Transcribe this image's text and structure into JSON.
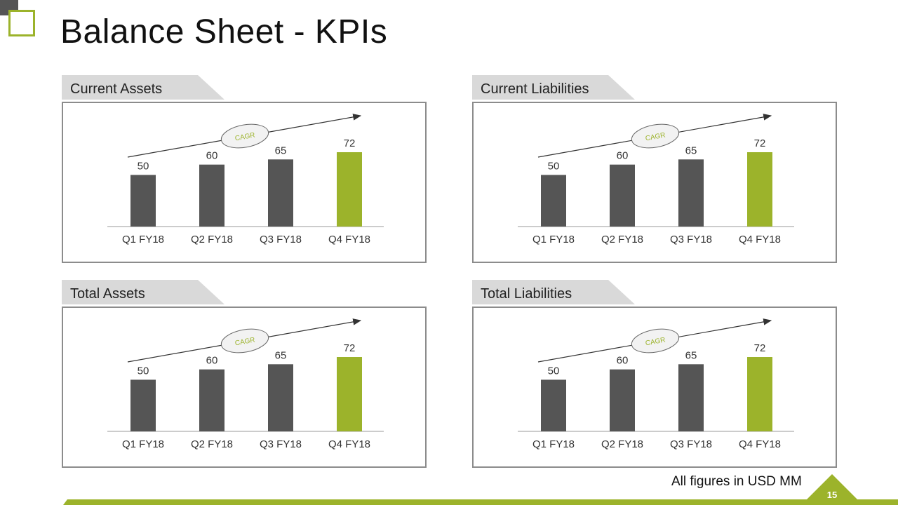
{
  "slide": {
    "title": "Balance Sheet - KPIs",
    "footer_note": "All figures in USD MM",
    "page_number": "15"
  },
  "colors": {
    "accent": "#9cb32b",
    "bar": "#555555",
    "header_bg": "#d9d9d9",
    "frame": "#8c8c8c"
  },
  "chart_data": [
    {
      "type": "bar",
      "title": "Current Assets",
      "categories": [
        "Q1 FY18",
        "Q2 FY18",
        "Q3 FY18",
        "Q4 FY18"
      ],
      "values": [
        50,
        60,
        65,
        72
      ],
      "highlight_index": 3,
      "annotation": "CAGR",
      "ylim": [
        0,
        72
      ]
    },
    {
      "type": "bar",
      "title": "Current Liabilities",
      "categories": [
        "Q1 FY18",
        "Q2 FY18",
        "Q3 FY18",
        "Q4 FY18"
      ],
      "values": [
        50,
        60,
        65,
        72
      ],
      "highlight_index": 3,
      "annotation": "CAGR",
      "ylim": [
        0,
        72
      ]
    },
    {
      "type": "bar",
      "title": "Total Assets",
      "categories": [
        "Q1 FY18",
        "Q2 FY18",
        "Q3 FY18",
        "Q4 FY18"
      ],
      "values": [
        50,
        60,
        65,
        72
      ],
      "highlight_index": 3,
      "annotation": "CAGR",
      "ylim": [
        0,
        72
      ]
    },
    {
      "type": "bar",
      "title": "Total Liabilities",
      "categories": [
        "Q1 FY18",
        "Q2 FY18",
        "Q3 FY18",
        "Q4 FY18"
      ],
      "values": [
        50,
        60,
        65,
        72
      ],
      "highlight_index": 3,
      "annotation": "CAGR",
      "ylim": [
        0,
        72
      ]
    }
  ]
}
